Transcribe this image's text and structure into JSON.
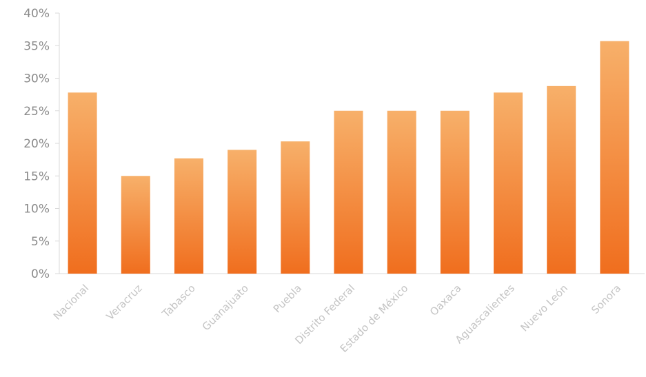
{
  "chart_data": {
    "type": "bar",
    "title": "",
    "xlabel": "",
    "ylabel": "",
    "categories": [
      "Nacional",
      "Veracruz",
      "Tabasco",
      "Guanajuato",
      "Puebla",
      "Distrito Federal",
      "Estado de México",
      "Oaxaca",
      "Aguascalientes",
      "Nuevo León",
      "Sonora"
    ],
    "values": [
      27.8,
      15.0,
      17.7,
      19.0,
      20.3,
      25.0,
      25.0,
      25.0,
      27.8,
      28.8,
      35.7
    ],
    "ylim": [
      0,
      40
    ],
    "yticks": [
      0,
      5,
      10,
      15,
      20,
      25,
      30,
      35,
      40
    ],
    "ytick_labels": [
      "0%",
      "5%",
      "10%",
      "15%",
      "20%",
      "25%",
      "30%",
      "35%",
      "40%"
    ],
    "grid": false,
    "legend": "none",
    "colors": {
      "bar_top": "#f7b06a",
      "bar_bottom": "#f06e1e",
      "axis": "#d9d9d9",
      "tick_text": "#8a8a8a",
      "category_text": "#c4c4c4"
    }
  }
}
